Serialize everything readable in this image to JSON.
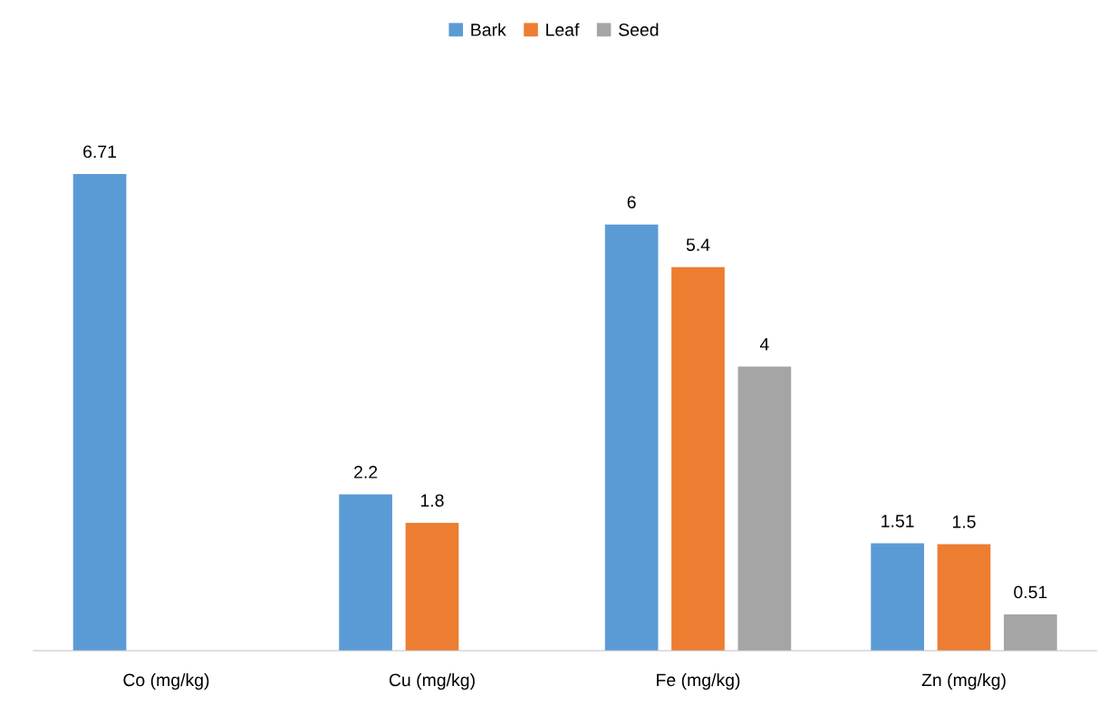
{
  "chart_data": {
    "type": "bar",
    "categories": [
      "Co (mg/kg)",
      "Cu (mg/kg)",
      "Fe (mg/kg)",
      "Zn (mg/kg)"
    ],
    "series": [
      {
        "name": "Bark",
        "color": "#5b9bd5",
        "values": [
          6.71,
          2.2,
          6,
          1.51
        ]
      },
      {
        "name": "Leaf",
        "color": "#ed7d31",
        "values": [
          null,
          1.8,
          5.4,
          1.5
        ]
      },
      {
        "name": "Seed",
        "color": "#a5a5a5",
        "values": [
          null,
          null,
          4,
          0.51
        ]
      }
    ],
    "data_labels": true,
    "legend": "top",
    "grid": false
  }
}
